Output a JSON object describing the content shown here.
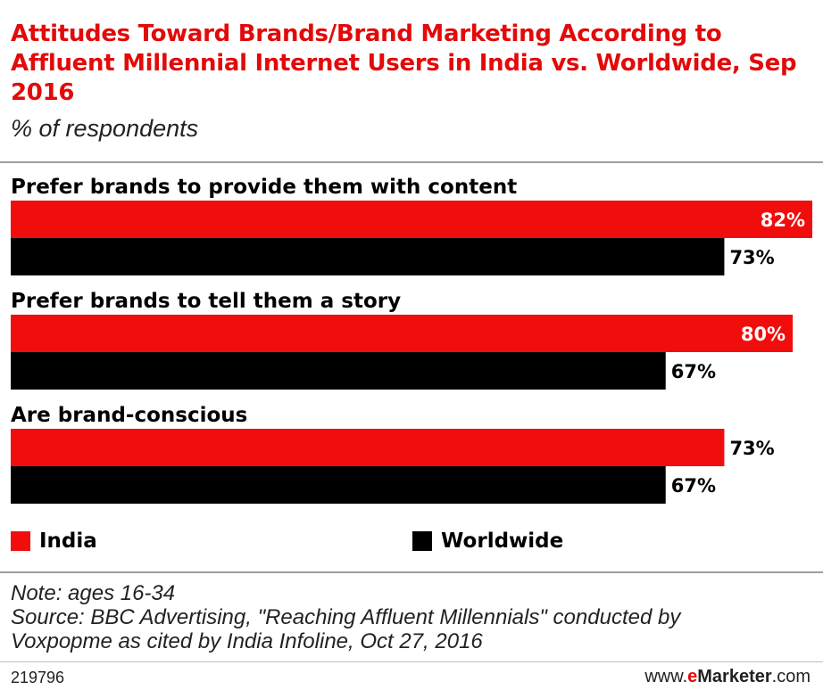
{
  "title": "Attitudes Toward Brands/Brand Marketing According to Affluent Millennial Internet Users in India vs. Worldwide, Sep 2016",
  "subtitle": "% of respondents",
  "colors": {
    "india": "#f20d0d",
    "worldwide": "#000000",
    "title": "#e20a0a"
  },
  "chart_data": {
    "type": "bar",
    "orientation": "horizontal",
    "categories": [
      "Prefer brands to provide them with content",
      "Prefer brands to tell them a story",
      "Are brand-conscious"
    ],
    "series": [
      {
        "name": "India",
        "values": [
          82,
          80,
          73
        ],
        "labels": [
          "82%",
          "80%",
          "73%"
        ]
      },
      {
        "name": "Worldwide",
        "values": [
          73,
          67,
          67
        ],
        "labels": [
          "73%",
          "67%",
          "67%"
        ]
      }
    ],
    "xlim": [
      0,
      82
    ],
    "grid": false,
    "legend": "bottom"
  },
  "notes": {
    "note": "Note: ages 16-34",
    "source_1": "Source: BBC Advertising, \"Reaching Affluent Millennials\" conducted by",
    "source_2": "Voxpopme as cited by India Infoline, Oct 27, 2016"
  },
  "footer": {
    "id": "219796",
    "brand_prefix": "www.",
    "brand_e": "e",
    "brand_name": "Marketer",
    "brand_suffix": ".com"
  }
}
